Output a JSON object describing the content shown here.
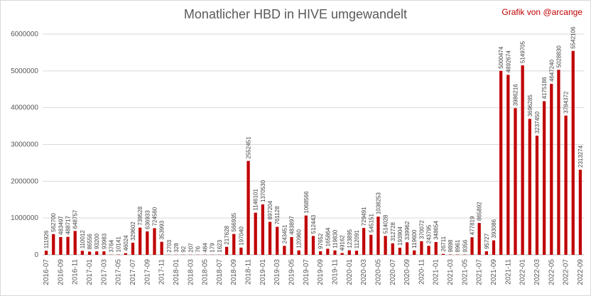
{
  "chart_data": {
    "type": "bar",
    "title": "Monatlicher HBD in HIVE umgewandelt",
    "credit": "Grafik von @arcange",
    "bar_color": "#c00000",
    "grid": true,
    "ylim": [
      0,
      6000000
    ],
    "y_ticks": [
      "0",
      "1000000",
      "2000000",
      "3000000",
      "4000000",
      "5000000",
      "6000000"
    ],
    "categories": [
      "2016-07",
      "2016-08",
      "2016-09",
      "2016-10",
      "2016-11",
      "2016-12",
      "2017-01",
      "2017-02",
      "2017-03",
      "2017-04",
      "2017-05",
      "2017-06",
      "2017-07",
      "2017-08",
      "2017-09",
      "2017-10",
      "2017-11",
      "2017-12",
      "2018-01",
      "2018-02",
      "2018-03",
      "2018-04",
      "2018-05",
      "2018-06",
      "2018-07",
      "2018-08",
      "2018-09",
      "2018-10",
      "2018-11",
      "2018-12",
      "2019-01",
      "2019-02",
      "2019-03",
      "2019-04",
      "2019-05",
      "2019-06",
      "2019-07",
      "2019-08",
      "2019-09",
      "2019-10",
      "2019-11",
      "2019-12",
      "2020-01",
      "2020-02",
      "2020-03",
      "2020-04",
      "2020-05",
      "2020-06",
      "2020-07",
      "2020-08",
      "2020-09",
      "2020-10",
      "2020-11",
      "2020-12",
      "2021-01",
      "2021-02",
      "2021-03",
      "2021-04",
      "2021-05",
      "2021-06",
      "2021-07",
      "2021-08",
      "2021-09",
      "2021-10",
      "2021-11",
      "2021-12",
      "2022-01",
      "2022-02",
      "2022-03",
      "2022-04",
      "2022-05",
      "2022-06",
      "2022-07",
      "2022-08",
      "2022-09"
    ],
    "values": [
      111926,
      562700,
      483497,
      488717,
      648757,
      110012,
      86556,
      93200,
      93983,
      3764,
      10141,
      46024,
      329602,
      739528,
      636933,
      724560,
      353993,
      2703,
      328,
      92,
      207,
      76,
      484,
      179,
      1623,
      217628,
      566935,
      197040,
      2552451,
      1146101,
      1370530,
      897204,
      761128,
      243451,
      483897,
      120960,
      1068566,
      512443,
      97652,
      165864,
      119830,
      49162,
      123895,
      112091,
      729491,
      545151,
      1038253,
      514028,
      312728,
      193904,
      339962,
      119600,
      370072,
      243795,
      348654,
      26711,
      9898,
      8961,
      9356,
      477819,
      865892,
      95727,
      393086,
      5000474,
      4892674,
      3986216,
      5149705,
      3696285,
      3237450,
      4175186,
      4647240,
      5028830,
      3784372,
      5542106,
      2313274
    ],
    "value_labels": [
      "111926",
      "562700",
      "483497",
      "488717",
      "648757",
      "110012",
      "86556",
      "93200",
      "93983",
      "3764",
      "10141",
      "46024",
      "329602",
      "739528",
      "636933",
      "724560",
      "353993",
      "2703",
      "328",
      "92",
      "207",
      "76",
      "484",
      "179",
      "1623",
      "217628",
      "566935",
      "197040",
      "2552451",
      "1146101",
      "1370530",
      "897204",
      "761128",
      "243451",
      "483897",
      "120960",
      "1068566",
      "512443",
      "97652",
      "165864",
      "119830",
      "49162",
      "123895",
      "112091",
      "729491",
      "545151",
      "1038253",
      "514028",
      "312728",
      "193904",
      "339962",
      "119600",
      "370072",
      "243795",
      "348654",
      "26711",
      "9898",
      "8961",
      "9356",
      "477819",
      "865892",
      "95727",
      "393086",
      "5000474",
      "4892674",
      "3986216",
      "5149705",
      "3696285",
      "3237450",
      "4175186",
      "4647240",
      "5028830",
      "3784372",
      "5542106",
      "2313274"
    ],
    "x_tick_labels": [
      "2016-07",
      "2016-09",
      "2016-11",
      "2017-01",
      "2017-03",
      "2017-05",
      "2017-07",
      "2017-09",
      "2017-11",
      "2018-01",
      "2018-03",
      "2018-05",
      "2018-07",
      "2018-09",
      "2018-11",
      "2019-01",
      "2019-03",
      "2019-05",
      "2019-07",
      "2019-09",
      "2019-11",
      "2020-01",
      "2020-03",
      "2020-05",
      "2020-07",
      "2020-09",
      "2020-11",
      "2021-01",
      "2021-03",
      "2021-05",
      "2021-07",
      "2021-09",
      "2021-11",
      "2022-01",
      "2022-03",
      "2022-05",
      "2022-07",
      "2022-09"
    ]
  }
}
